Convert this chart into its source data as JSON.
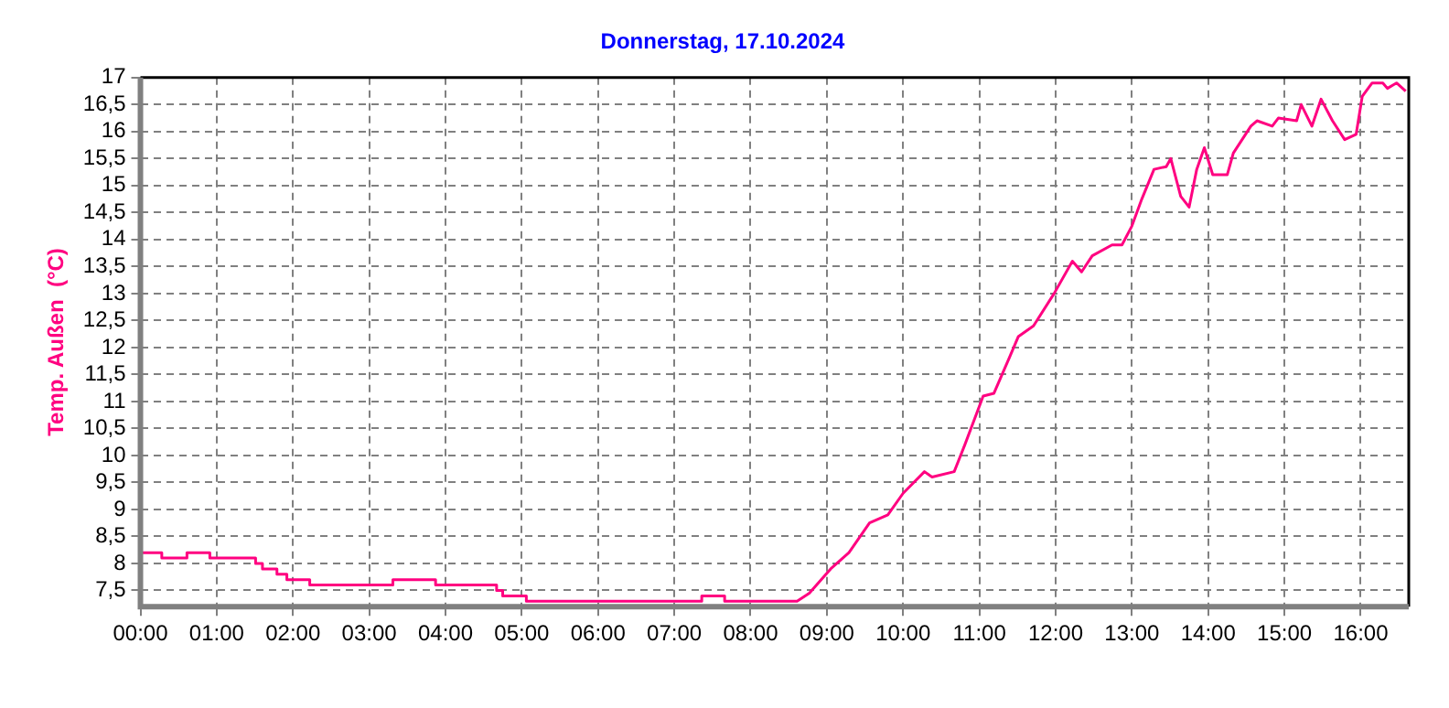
{
  "chart_data": {
    "type": "line",
    "title": "Donnerstag, 17.10.2024",
    "ylabel": "Temp. Außen  (°C)",
    "grid": true,
    "legend": false,
    "marker": "none",
    "line_style": "solid",
    "xlim": [
      0,
      16.63
    ],
    "ylim": [
      7.2,
      17
    ],
    "xticks": [
      {
        "value": 0,
        "label": "00:00"
      },
      {
        "value": 1,
        "label": "01:00"
      },
      {
        "value": 2,
        "label": "02:00"
      },
      {
        "value": 3,
        "label": "03:00"
      },
      {
        "value": 4,
        "label": "04:00"
      },
      {
        "value": 5,
        "label": "05:00"
      },
      {
        "value": 6,
        "label": "06:00"
      },
      {
        "value": 7,
        "label": "07:00"
      },
      {
        "value": 8,
        "label": "08:00"
      },
      {
        "value": 9,
        "label": "09:00"
      },
      {
        "value": 10,
        "label": "10:00"
      },
      {
        "value": 11,
        "label": "11:00"
      },
      {
        "value": 12,
        "label": "12:00"
      },
      {
        "value": 13,
        "label": "13:00"
      },
      {
        "value": 14,
        "label": "14:00"
      },
      {
        "value": 15,
        "label": "15:00"
      },
      {
        "value": 16,
        "label": "16:00"
      }
    ],
    "yticks": [
      {
        "value": 7.5,
        "label": "7,5"
      },
      8,
      {
        "value": 8.5,
        "label": "8,5"
      },
      9,
      {
        "value": 9.5,
        "label": "9,5"
      },
      10,
      {
        "value": 10.5,
        "label": "10,5"
      },
      11,
      {
        "value": 11.5,
        "label": "11,5"
      },
      12,
      {
        "value": 12.5,
        "label": "12,5"
      },
      13,
      {
        "value": 13.5,
        "label": "13,5"
      },
      14,
      {
        "value": 14.5,
        "label": "14,5"
      },
      15,
      {
        "value": 15.5,
        "label": "15,5"
      },
      16,
      {
        "value": 16.5,
        "label": "16,5"
      },
      17
    ],
    "series": [
      {
        "color": "#ff0080",
        "x": [
          0,
          0.28,
          0.28,
          0.61,
          0.61,
          0.91,
          0.91,
          1.51,
          1.51,
          1.6,
          1.6,
          1.79,
          1.79,
          1.92,
          1.92,
          2.22,
          2.22,
          3.31,
          3.31,
          3.87,
          3.87,
          4.67,
          4.67,
          4.75,
          4.75,
          5.06,
          5.06,
          7.36,
          7.36,
          7.66,
          7.66,
          8.57,
          8.61,
          8.77,
          9.05,
          9.29,
          9.56,
          9.8,
          10.0,
          10.28,
          10.38,
          10.67,
          10.81,
          11.05,
          11.19,
          11.39,
          11.51,
          11.71,
          11.98,
          12.22,
          12.34,
          12.48,
          12.74,
          12.87,
          13.0,
          13.13,
          13.29,
          13.45,
          13.51,
          13.64,
          13.75,
          13.85,
          13.95,
          14.06,
          14.25,
          14.33,
          14.56,
          14.64,
          14.84,
          14.92,
          15.16,
          15.22,
          15.36,
          15.48,
          15.63,
          15.79,
          15.94,
          16.02,
          16.15,
          16.29,
          16.35,
          16.47,
          16.59
        ],
        "values": [
          8.2,
          8.2,
          8.1,
          8.1,
          8.2,
          8.2,
          8.1,
          8.1,
          8.0,
          8.0,
          7.9,
          7.9,
          7.8,
          7.8,
          7.7,
          7.7,
          7.6,
          7.6,
          7.7,
          7.7,
          7.6,
          7.6,
          7.5,
          7.5,
          7.4,
          7.4,
          7.3,
          7.3,
          7.4,
          7.4,
          7.3,
          7.3,
          7.3,
          7.45,
          7.9,
          8.2,
          8.75,
          8.9,
          9.3,
          9.7,
          9.6,
          9.7,
          10.2,
          11.1,
          11.15,
          11.8,
          12.2,
          12.4,
          13.0,
          13.6,
          13.4,
          13.7,
          13.9,
          13.9,
          14.25,
          14.75,
          15.3,
          15.35,
          15.5,
          14.8,
          14.6,
          15.3,
          15.7,
          15.2,
          15.2,
          15.6,
          16.1,
          16.2,
          16.1,
          16.25,
          16.2,
          16.5,
          16.1,
          16.6,
          16.2,
          15.85,
          15.95,
          16.65,
          16.9,
          16.9,
          16.8,
          16.9,
          16.75
        ]
      }
    ]
  }
}
